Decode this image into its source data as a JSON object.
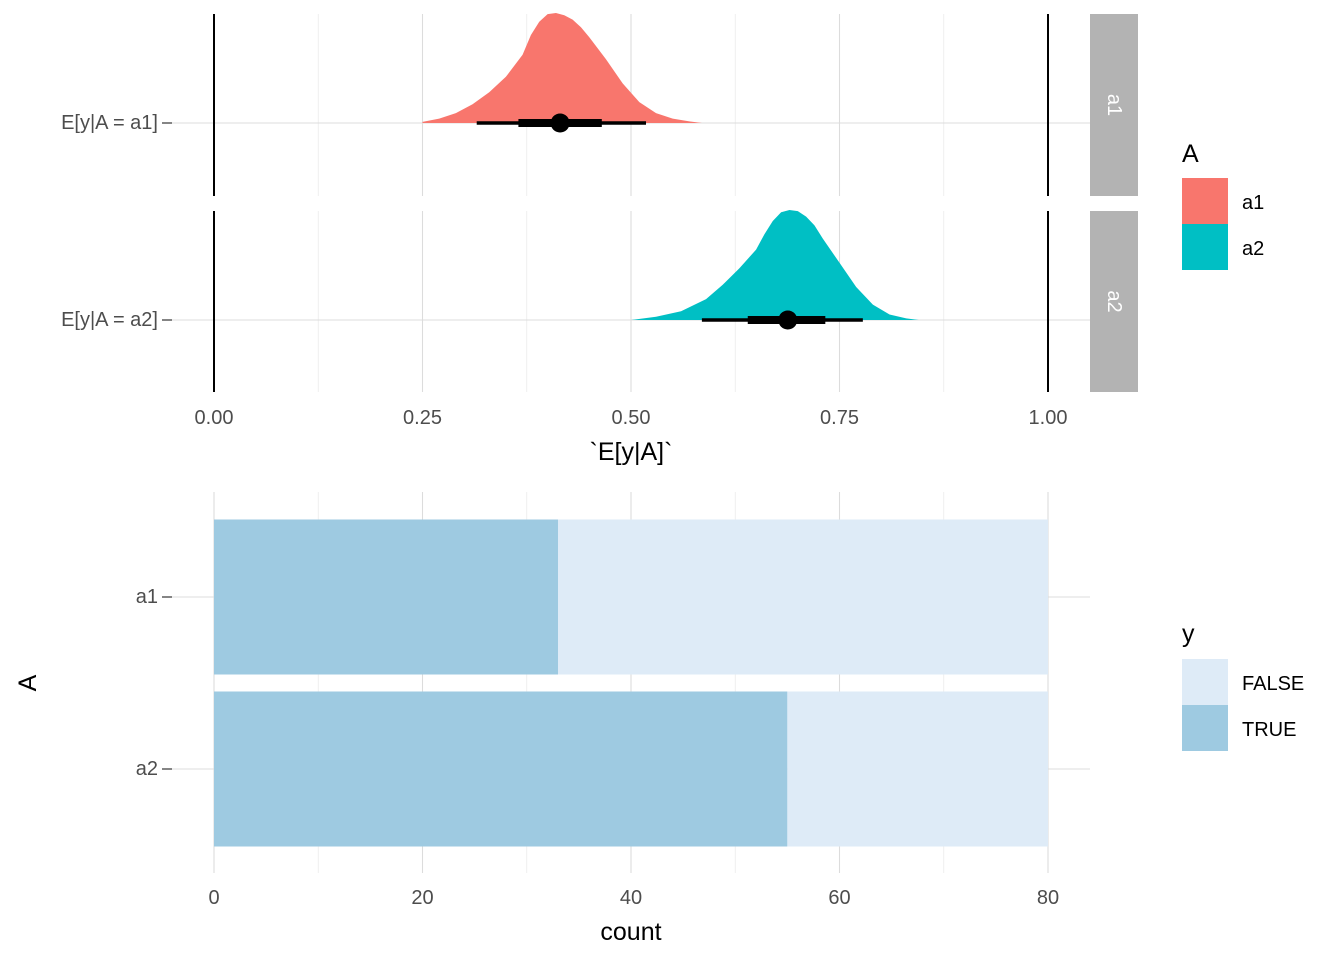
{
  "chart_data": [
    {
      "type": "area",
      "subtype": "density-halfeye",
      "xlabel": "`E[y|A]`",
      "ylabel": "",
      "xlim": [
        0,
        1
      ],
      "x_ticks": [
        "0.00",
        "0.25",
        "0.50",
        "0.75",
        "1.00"
      ],
      "reference_lines_x": [
        0,
        1
      ],
      "facets": [
        "a1",
        "a2"
      ],
      "legend": {
        "title": "A",
        "position": "right"
      },
      "grid": true,
      "series": [
        {
          "name": "a1",
          "facet": "a1",
          "y_label": "E[y|A = a1]",
          "color": "#F8766D",
          "median": 0.415,
          "interval_66": [
            0.365,
            0.465
          ],
          "interval_95": [
            0.315,
            0.518
          ],
          "density": {
            "x": [
              0.25,
              0.27,
              0.29,
              0.31,
              0.33,
              0.35,
              0.37,
              0.38,
              0.39,
              0.4,
              0.41,
              0.42,
              0.43,
              0.44,
              0.45,
              0.47,
              0.49,
              0.51,
              0.53,
              0.55,
              0.57,
              0.585
            ],
            "y": [
              0.01,
              0.04,
              0.09,
              0.17,
              0.28,
              0.42,
              0.62,
              0.8,
              0.92,
              0.99,
              1.0,
              0.98,
              0.94,
              0.87,
              0.78,
              0.58,
              0.36,
              0.19,
              0.09,
              0.04,
              0.015,
              0.0
            ]
          }
        },
        {
          "name": "a2",
          "facet": "a2",
          "y_label": "E[y|A = a2]",
          "color": "#00BFC4",
          "median": 0.688,
          "interval_66": [
            0.64,
            0.733
          ],
          "interval_95": [
            0.585,
            0.778
          ],
          "density": {
            "x": [
              0.5,
              0.53,
              0.56,
              0.59,
              0.61,
              0.63,
              0.65,
              0.66,
              0.67,
              0.68,
              0.69,
              0.7,
              0.71,
              0.72,
              0.73,
              0.75,
              0.77,
              0.79,
              0.81,
              0.83,
              0.845
            ],
            "y": [
              0.0,
              0.03,
              0.08,
              0.19,
              0.32,
              0.47,
              0.64,
              0.78,
              0.9,
              0.98,
              1.0,
              0.99,
              0.94,
              0.86,
              0.74,
              0.52,
              0.3,
              0.14,
              0.05,
              0.015,
              0.0
            ]
          }
        }
      ]
    },
    {
      "type": "bar",
      "orientation": "horizontal",
      "stacked": true,
      "xlabel": "count",
      "ylabel": "A",
      "xlim": [
        0,
        80
      ],
      "x_ticks": [
        "0",
        "20",
        "40",
        "60",
        "80"
      ],
      "categories": [
        "a1",
        "a2"
      ],
      "legend": {
        "title": "y",
        "position": "right"
      },
      "grid": true,
      "series": [
        {
          "name": "TRUE",
          "color": "#9ECAE1",
          "values": [
            33,
            55
          ]
        },
        {
          "name": "FALSE",
          "color": "#DEEBF7",
          "values": [
            47,
            25
          ]
        }
      ]
    }
  ]
}
